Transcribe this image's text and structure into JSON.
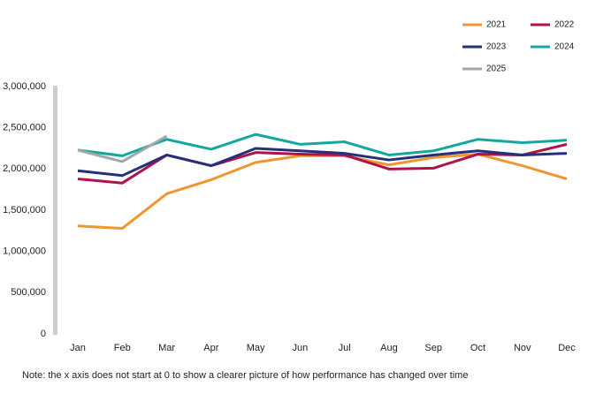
{
  "chart_data": {
    "type": "line",
    "categories": [
      "Jan",
      "Feb",
      "Mar",
      "Apr",
      "May",
      "Jun",
      "Jul",
      "Aug",
      "Sep",
      "Oct",
      "Nov",
      "Dec"
    ],
    "series": [
      {
        "name": "2021",
        "color": "#f0962e",
        "values": [
          1310000,
          1280000,
          1700000,
          1870000,
          2080000,
          2160000,
          2160000,
          2050000,
          2140000,
          2180000,
          2040000,
          1880000
        ]
      },
      {
        "name": "2022",
        "color": "#b0124b",
        "values": [
          1880000,
          1830000,
          2170000,
          2040000,
          2200000,
          2180000,
          2170000,
          2000000,
          2010000,
          2180000,
          2170000,
          2300000
        ]
      },
      {
        "name": "2023",
        "color": "#262f7a",
        "values": [
          1980000,
          1920000,
          2170000,
          2040000,
          2250000,
          2220000,
          2190000,
          2110000,
          2170000,
          2220000,
          2170000,
          2190000
        ]
      },
      {
        "name": "2024",
        "color": "#13a89e",
        "values": [
          2230000,
          2160000,
          2360000,
          2240000,
          2420000,
          2300000,
          2330000,
          2170000,
          2220000,
          2360000,
          2320000,
          2350000
        ]
      },
      {
        "name": "2025",
        "color": "#a2a6ad",
        "values": [
          2230000,
          2090000,
          2400000,
          null,
          null,
          null,
          null,
          null,
          null,
          null,
          null,
          null
        ]
      }
    ],
    "ylim": [
      0,
      3000000
    ],
    "yticks": [
      {
        "value": 0,
        "label": "0"
      },
      {
        "value": 500000,
        "label": "500,000"
      },
      {
        "value": 1000000,
        "label": "1,000,000"
      },
      {
        "value": 1500000,
        "label": "1,500,000"
      },
      {
        "value": 2000000,
        "label": "2,000,000"
      },
      {
        "value": 2500000,
        "label": "2,500,000"
      },
      {
        "value": 3000000,
        "label": "3,000,000"
      }
    ],
    "note": "Note: the x axis does not start at 0 to show a clearer picture of how performance has changed over time",
    "legend": "top-right"
  }
}
